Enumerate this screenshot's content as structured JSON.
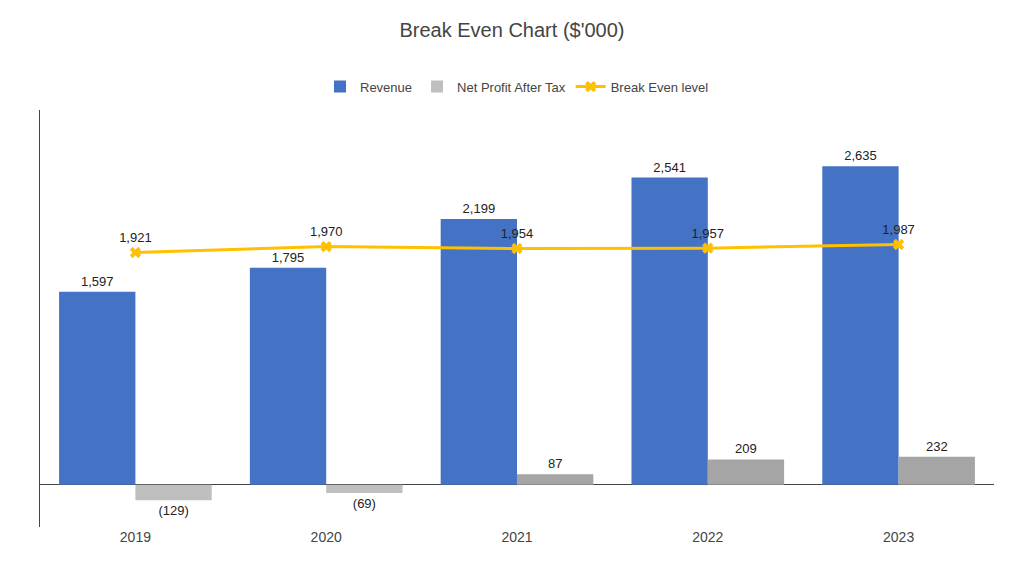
{
  "chart_data": {
    "type": "bar",
    "title": "Break Even Chart ($'000)",
    "categories": [
      "2019",
      "2020",
      "2021",
      "2022",
      "2023"
    ],
    "series": [
      {
        "name": "Revenue",
        "type": "bar",
        "color": "#4472C4",
        "values": [
          1597,
          1795,
          2199,
          2541,
          2635
        ],
        "value_labels": [
          "1,597",
          "1,795",
          "2,199",
          "2,541",
          "2,635"
        ]
      },
      {
        "name": "Net Profit After Tax",
        "type": "bar",
        "colors": [
          "#BFBFBF",
          "#BFBFBF",
          "#A5A5A5",
          "#A5A5A5",
          "#A5A5A5"
        ],
        "values": [
          -129,
          -69,
          87,
          209,
          232
        ],
        "value_labels": [
          "(129)",
          "(69)",
          "87",
          "209",
          "232"
        ]
      },
      {
        "name": "Break Even level",
        "type": "line",
        "color": "#FFC000",
        "marker": "x",
        "line_style": "solid",
        "values": [
          1921,
          1970,
          1954,
          1957,
          1987
        ],
        "value_labels": [
          "1,921",
          "1,970",
          "1,954",
          "1,957",
          "1,987"
        ]
      }
    ],
    "ylim": [
      -350,
      3100
    ],
    "yticks": [],
    "tick_labels": "x",
    "grid": false,
    "legend": "top",
    "data_labels": true
  }
}
